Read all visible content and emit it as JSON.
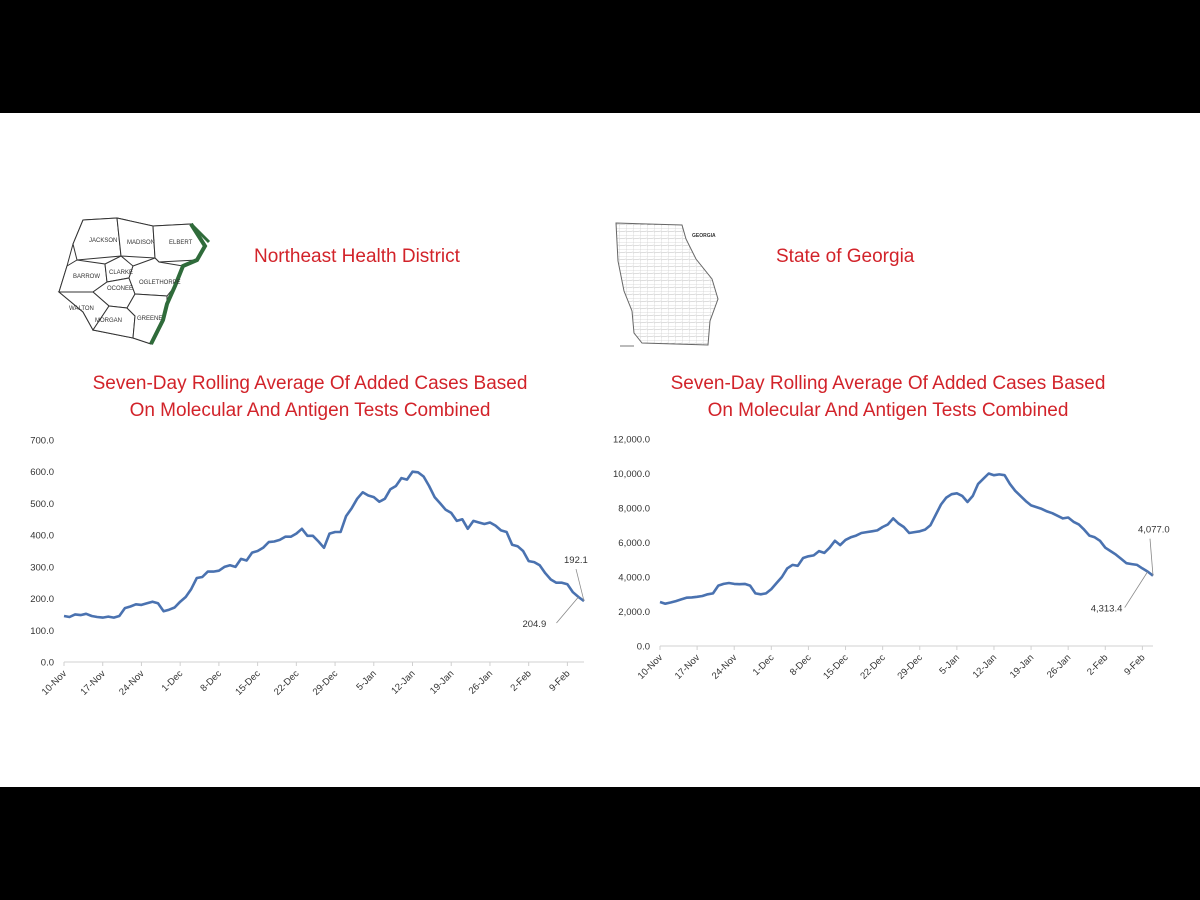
{
  "left": {
    "heading": "Northeast Health District",
    "map_counties": [
      "JACKSON",
      "MADISON",
      "ELBERT",
      "BARROW",
      "CLARKE",
      "OCONEE",
      "OGLETHORPE",
      "WALTON",
      "MORGAN",
      "GREENE"
    ],
    "title_line1": "Seven-Day Rolling Average Of  Added Cases Based",
    "title_line2": "On Molecular And Antigen Tests Combined"
  },
  "right": {
    "heading": "State of Georgia",
    "map_label": "GEORGIA",
    "title_line1": "Seven-Day Rolling Average Of  Added Cases Based",
    "title_line2": "On Molecular And Antigen Tests Combined"
  },
  "chart_data": [
    {
      "type": "line",
      "title": "Seven-Day Rolling Average Of  Added Cases Based On Molecular And Antigen Tests Combined",
      "xlabel": "",
      "ylabel": "",
      "ylim": [
        0,
        700
      ],
      "yticks": [
        "0.0",
        "100.0",
        "200.0",
        "300.0",
        "400.0",
        "500.0",
        "600.0",
        "700.0"
      ],
      "xticks": [
        "10-Nov",
        "17-Nov",
        "24-Nov",
        "1-Dec",
        "8-Dec",
        "15-Dec",
        "22-Dec",
        "29-Dec",
        "5-Jan",
        "12-Jan",
        "19-Jan",
        "26-Jan",
        "2-Feb",
        "9-Feb"
      ],
      "color": "#4a72b0",
      "grid": false,
      "values": [
        145,
        142,
        150,
        148,
        152,
        145,
        142,
        140,
        143,
        140,
        145,
        170,
        175,
        182,
        180,
        185,
        190,
        185,
        160,
        165,
        172,
        190,
        205,
        230,
        265,
        268,
        285,
        285,
        288,
        300,
        305,
        300,
        325,
        320,
        345,
        350,
        360,
        378,
        380,
        385,
        395,
        395,
        405,
        420,
        398,
        398,
        380,
        360,
        405,
        410,
        410,
        460,
        485,
        515,
        535,
        525,
        520,
        505,
        515,
        545,
        555,
        580,
        575,
        600,
        598,
        585,
        555,
        520,
        500,
        480,
        470,
        445,
        450,
        420,
        445,
        440,
        435,
        440,
        430,
        415,
        410,
        370,
        365,
        350,
        318,
        315,
        305,
        280,
        260,
        250,
        250,
        245,
        220,
        204.9,
        192.1
      ],
      "annotations": [
        {
          "label": "192.1",
          "x_index": 94,
          "value": 192.1
        },
        {
          "label": "204.9",
          "x_index": 93,
          "value": 204.9
        }
      ]
    },
    {
      "type": "line",
      "title": "Seven-Day Rolling Average Of  Added Cases Based On Molecular And Antigen Tests Combined",
      "xlabel": "",
      "ylabel": "",
      "ylim": [
        0,
        12000
      ],
      "yticks": [
        "0.0",
        "2,000.0",
        "4,000.0",
        "6,000.0",
        "8,000.0",
        "10,000.0",
        "12,000.0"
      ],
      "xticks": [
        "10-Nov",
        "17-Nov",
        "24-Nov",
        "1-Dec",
        "8-Dec",
        "15-Dec",
        "22-Dec",
        "29-Dec",
        "5-Jan",
        "12-Jan",
        "19-Jan",
        "26-Jan",
        "2-Feb",
        "9-Feb"
      ],
      "color": "#4a72b0",
      "grid": false,
      "values": [
        2550,
        2450,
        2520,
        2600,
        2700,
        2800,
        2820,
        2850,
        2900,
        3000,
        3050,
        3500,
        3600,
        3650,
        3600,
        3580,
        3600,
        3500,
        3050,
        3000,
        3050,
        3300,
        3650,
        4000,
        4500,
        4700,
        4650,
        5100,
        5200,
        5250,
        5500,
        5400,
        5700,
        6100,
        5850,
        6150,
        6300,
        6400,
        6550,
        6600,
        6650,
        6700,
        6900,
        7050,
        7400,
        7100,
        6900,
        6550,
        6600,
        6650,
        6750,
        7000,
        7600,
        8200,
        8600,
        8800,
        8850,
        8700,
        8350,
        8700,
        9400,
        9700,
        10000,
        9900,
        9950,
        9900,
        9400,
        9000,
        8700,
        8400,
        8150,
        8050,
        7950,
        7800,
        7700,
        7550,
        7400,
        7450,
        7200,
        7050,
        6750,
        6400,
        6300,
        6100,
        5700,
        5500,
        5300,
        5050,
        4800,
        4750,
        4700,
        4500,
        4313.4,
        4077.0
      ],
      "annotations": [
        {
          "label": "4,077.0",
          "x_index": 93,
          "value": 4077.0
        },
        {
          "label": "4,313.4",
          "x_index": 92,
          "value": 4313.4
        }
      ]
    }
  ]
}
